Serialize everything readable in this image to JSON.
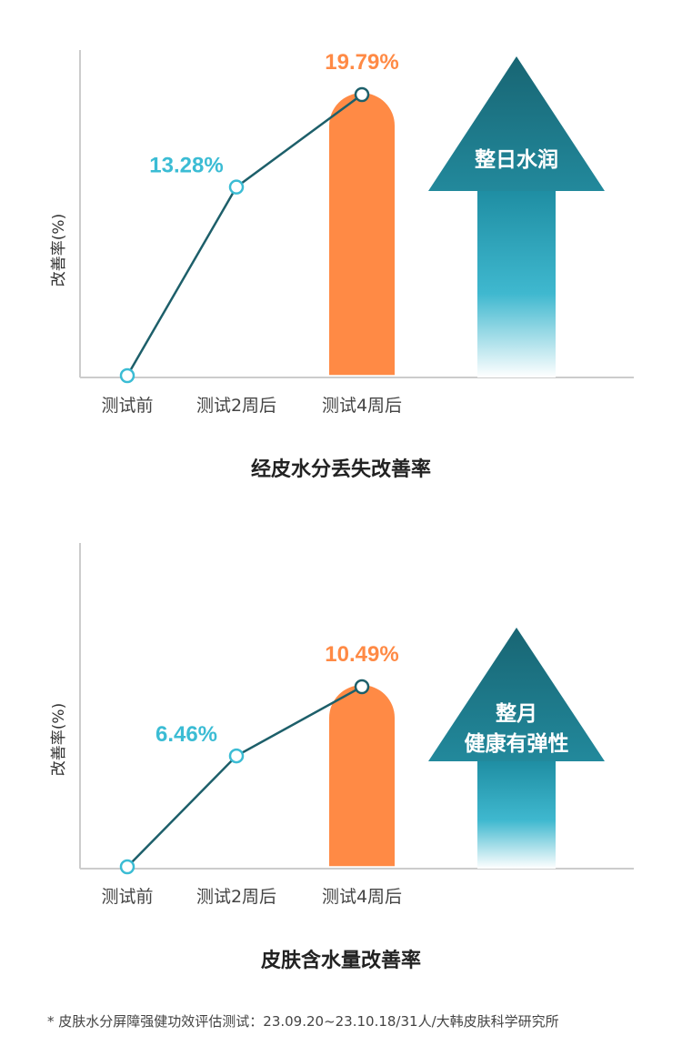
{
  "chart_data": [
    {
      "type": "line",
      "title": "经皮水分丢失改善率",
      "ylabel": "改善率(%)",
      "categories": [
        "测试前",
        "测试2周后",
        "测试4周后"
      ],
      "values": [
        0,
        13.28,
        19.79
      ],
      "value_labels": [
        "",
        "13.28%",
        "19.79%"
      ],
      "highlight_index": 2,
      "ylim": [
        0,
        22
      ],
      "grid": false,
      "arrow_text": [
        "整日水润"
      ],
      "colors": {
        "line": "#1d5f6a",
        "point_label": "#3bbcd4",
        "highlight": "#ff8a45"
      }
    },
    {
      "type": "line",
      "title": "皮肤含水量改善率",
      "ylabel": "改善率(%)",
      "categories": [
        "测试前",
        "测试2周后",
        "测试4周后"
      ],
      "values": [
        0,
        6.46,
        10.49
      ],
      "value_labels": [
        "",
        "6.46%",
        "10.49%"
      ],
      "highlight_index": 2,
      "ylim": [
        0,
        10.5
      ],
      "grid": false,
      "arrow_text": [
        "整月",
        "健康有弹性"
      ],
      "colors": {
        "line": "#1d5f6a",
        "point_label": "#3bbcd4",
        "highlight": "#ff8a45"
      }
    }
  ],
  "footnote": "* 皮肤水分屏障强健功效评估测试：23.09.20~23.10.18/31人/大韩皮肤科学研究所"
}
